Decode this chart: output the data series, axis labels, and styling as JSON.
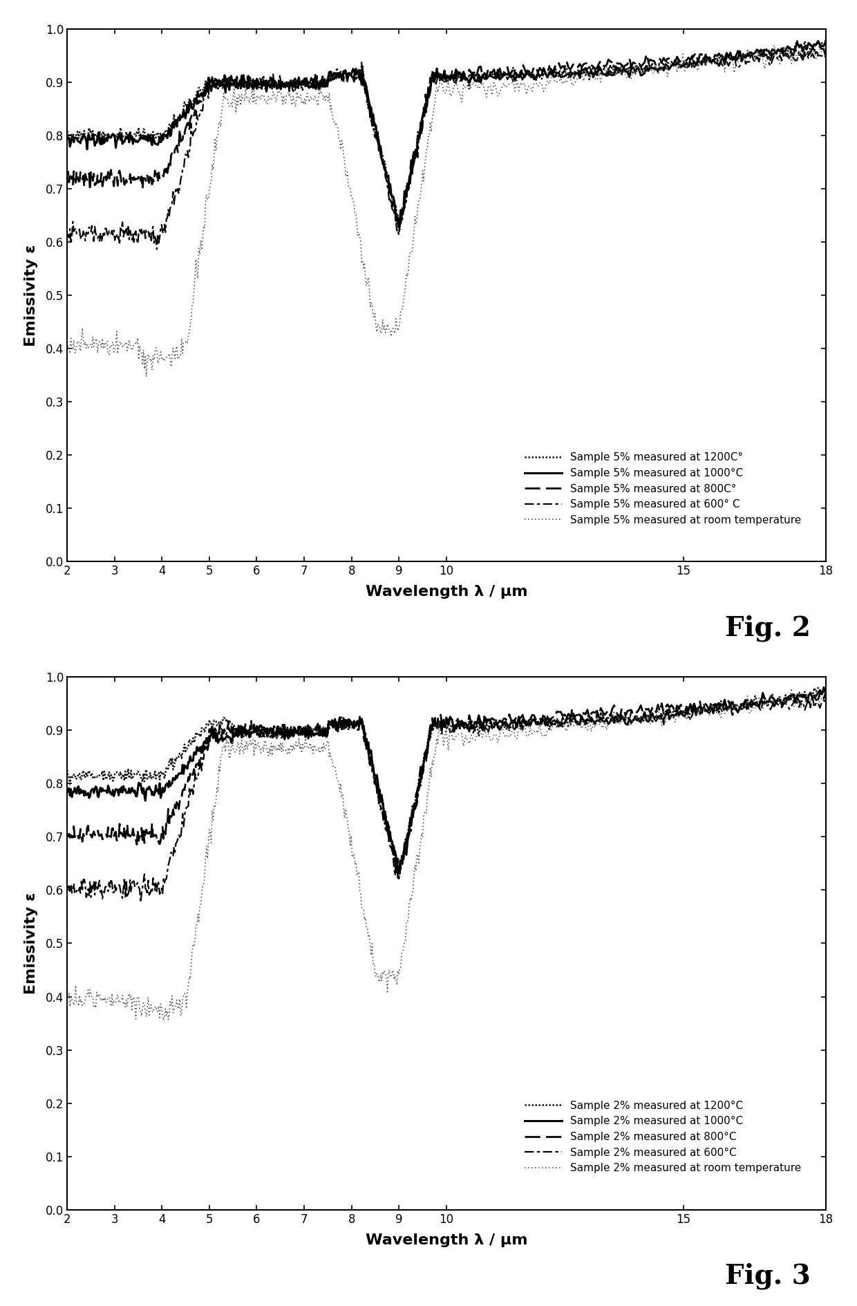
{
  "fig2": {
    "title": "Fig. 2",
    "xlabel": "Wavelength λ / μm",
    "ylabel": "Emissivity ε",
    "xlim": [
      2,
      18
    ],
    "ylim": [
      0.0,
      1.0
    ],
    "xticks": [
      2,
      3,
      4,
      5,
      6,
      7,
      8,
      9,
      10,
      15,
      18
    ],
    "yticks": [
      0.0,
      0.1,
      0.2,
      0.3,
      0.4,
      0.5,
      0.6,
      0.7,
      0.8,
      0.9,
      1.0
    ],
    "legend_entries": [
      "Sample 5% measured at 1200C°",
      "Sample 5% measured at 1000°C",
      "Sample 5% measured at 800C°",
      "Sample 5% measured at 600° C",
      "Sample 5% measured at room temperature"
    ]
  },
  "fig3": {
    "title": "Fig. 3",
    "xlabel": "Wavelength λ / μm",
    "ylabel": "Emissivity ε",
    "xlim": [
      2,
      18
    ],
    "ylim": [
      0.0,
      1.0
    ],
    "xticks": [
      2,
      3,
      4,
      5,
      6,
      7,
      8,
      9,
      10,
      15,
      18
    ],
    "yticks": [
      0.0,
      0.1,
      0.2,
      0.3,
      0.4,
      0.5,
      0.6,
      0.7,
      0.8,
      0.9,
      1.0
    ],
    "legend_entries": [
      "Sample 2% measured at 1200°C",
      "Sample 2% measured at 1000°C",
      "Sample 2% measured at 800°C",
      "Sample 2% measured at 600°C",
      "Sample 2% measured at room temperature"
    ]
  },
  "background_color": "#ffffff",
  "fig_label_fontsize": 28,
  "axis_label_fontsize": 16,
  "tick_fontsize": 12,
  "legend_fontsize": 11
}
